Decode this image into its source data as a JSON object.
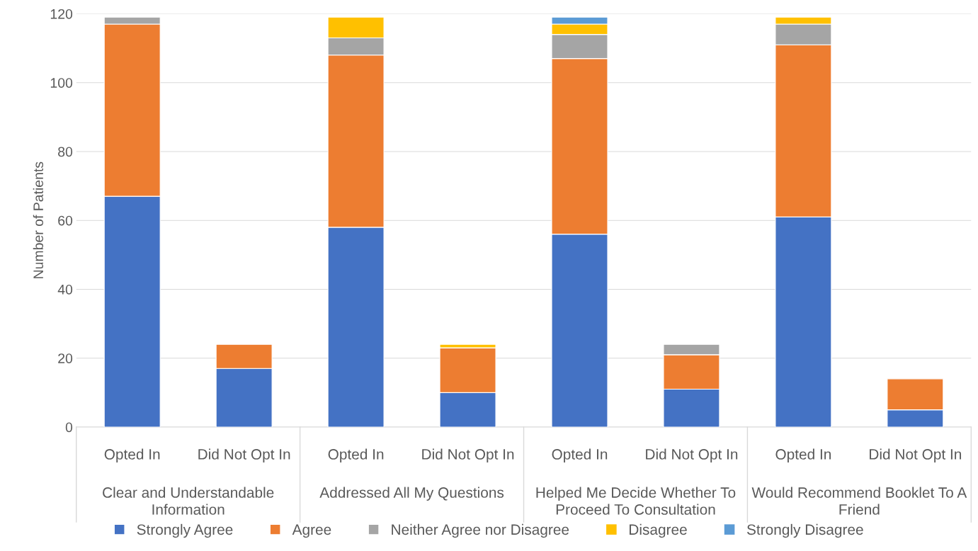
{
  "chart_data": {
    "type": "bar",
    "stacked": true,
    "ylabel": "Number of Patients",
    "categories": [
      "Opted In",
      "Did Not Opt In",
      "Opted In",
      "Did Not Opt In",
      "Opted In",
      "Did Not Opt In",
      "Opted In",
      "Did Not Opt In"
    ],
    "annotations": [
      "Clear and Understandable Information",
      "Addressed All My Questions",
      "Helped Me Decide Whether To Proceed To Consultation",
      "Would Recommend Booklet To A Friend"
    ],
    "series": [
      {
        "name": "Strongly Agree",
        "color": "#4472c4",
        "values": [
          67,
          17,
          58,
          10,
          56,
          11,
          61,
          5
        ]
      },
      {
        "name": "Agree",
        "color": "#ed7d31",
        "values": [
          50,
          7,
          50,
          13,
          51,
          10,
          50,
          9
        ]
      },
      {
        "name": "Neither Agree nor Disagree",
        "color": "#a5a5a5",
        "values": [
          2,
          0,
          5,
          0,
          7,
          3,
          6,
          0
        ]
      },
      {
        "name": "Disagree",
        "color": "#ffc000",
        "values": [
          0,
          0,
          6,
          1,
          3,
          0,
          2,
          0
        ]
      },
      {
        "name": "Strongly Disagree",
        "color": "#5b9bd5",
        "values": [
          0,
          0,
          0,
          0,
          2,
          0,
          0,
          0
        ]
      }
    ],
    "ylim": [
      0,
      120
    ],
    "yticks": [
      0,
      20,
      40,
      60,
      80,
      100,
      120
    ],
    "grid": "y",
    "legend": "bottom"
  }
}
